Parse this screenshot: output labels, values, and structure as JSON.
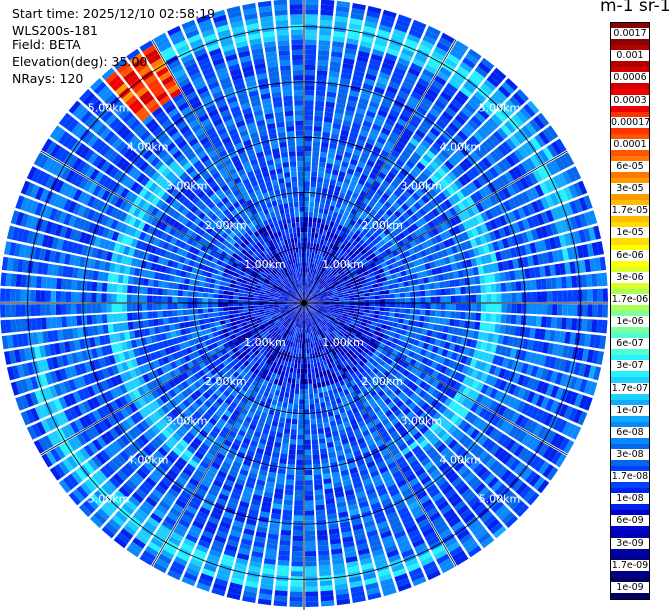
{
  "info": {
    "start_time": "Start time: 2025/12/10 02:58:19",
    "instrument": "WLS200s-181",
    "field": "Field: BETA",
    "elevation": "Elevation(deg): 35.00",
    "nrays": "NRays: 120"
  },
  "colorbar": {
    "units": "m-1 sr-1",
    "ticks": [
      "0.0017",
      "0.001",
      "0.0006",
      "0.0003",
      "0.00017",
      "0.0001",
      "6e-05",
      "3e-05",
      "1.7e-05",
      "1e-05",
      "6e-06",
      "3e-06",
      "1.7e-06",
      "1e-06",
      "6e-07",
      "3e-07",
      "1.7e-07",
      "1e-07",
      "6e-08",
      "3e-08",
      "1.7e-08",
      "1e-08",
      "6e-09",
      "3e-09",
      "1.7e-09",
      "1e-09"
    ],
    "colors": [
      "#8b0000",
      "#b00000",
      "#d40000",
      "#f00000",
      "#ff3300",
      "#ff5500",
      "#ff7700",
      "#ff9900",
      "#ffbb00",
      "#ffdd00",
      "#ffff00",
      "#d8ff2a",
      "#aaff55",
      "#80ffa0",
      "#50ffd0",
      "#28f0ff",
      "#1ed0ff",
      "#10aaff",
      "#0a88ff",
      "#0566ee",
      "#0040ff",
      "#0022ee",
      "#0000cc",
      "#0000aa",
      "#000088",
      "#000066"
    ]
  },
  "chart_data": {
    "type": "heatmap",
    "projection": "polar (PPI)",
    "n_rays": 120,
    "elevation_deg": 35.0,
    "field": "BETA",
    "range_unit": "km",
    "range_max_km": 5.5,
    "range_rings_km": [
      1,
      2,
      3,
      4,
      5
    ],
    "range_ring_labels": [
      "1.00km",
      "2.00km",
      "3.00km",
      "4.00km",
      "5.00km"
    ],
    "features": [
      {
        "description_value": "background",
        "beta_approx": 3e-08
      },
      {
        "description_value": "ring band",
        "range_km": [
          3.2,
          3.6
        ],
        "beta_approx": 1.7e-07
      },
      {
        "description_value": "outer band",
        "range_km": [
          4.8,
          5.2
        ],
        "beta_approx": 1.7e-07
      },
      {
        "description_value": "near-range",
        "range_km": [
          0.0,
          1.5
        ],
        "beta_approx": 1e-08
      },
      {
        "description_value": "hotspot",
        "azimuth_deg": [
          318,
          330
        ],
        "range_km": [
          4.4,
          5.4
        ],
        "beta_approx": 3e-05
      }
    ],
    "color_scale": "log"
  }
}
